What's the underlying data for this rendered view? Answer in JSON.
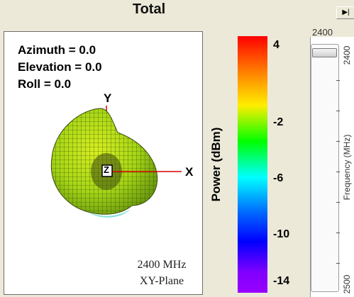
{
  "header": {
    "title": "Total",
    "play_glyph": "▶|"
  },
  "plot": {
    "azimuth": "Azimuth = 0.0",
    "elevation": "Elevation = 0.0",
    "roll": "Roll = 0.0",
    "axis_y": "Y",
    "axis_x": "X",
    "axis_z": "Z",
    "frequency": "2400 MHz",
    "plane": "XY-Plane"
  },
  "colorbar": {
    "title": "Power (dBm)",
    "labels": [
      "4",
      "-2",
      "-6",
      "-10",
      "-14"
    ],
    "colors": [
      "#ff0000",
      "#ffee00",
      "#00ff00",
      "#00ffff",
      "#0000ff",
      "#9900ff"
    ]
  },
  "slider": {
    "top_value": "2400",
    "top_side_label": "2400",
    "axis_label": "Frequency (MHz)",
    "bottom_side_label": "2500",
    "selected_value_fraction": 0.0
  }
}
